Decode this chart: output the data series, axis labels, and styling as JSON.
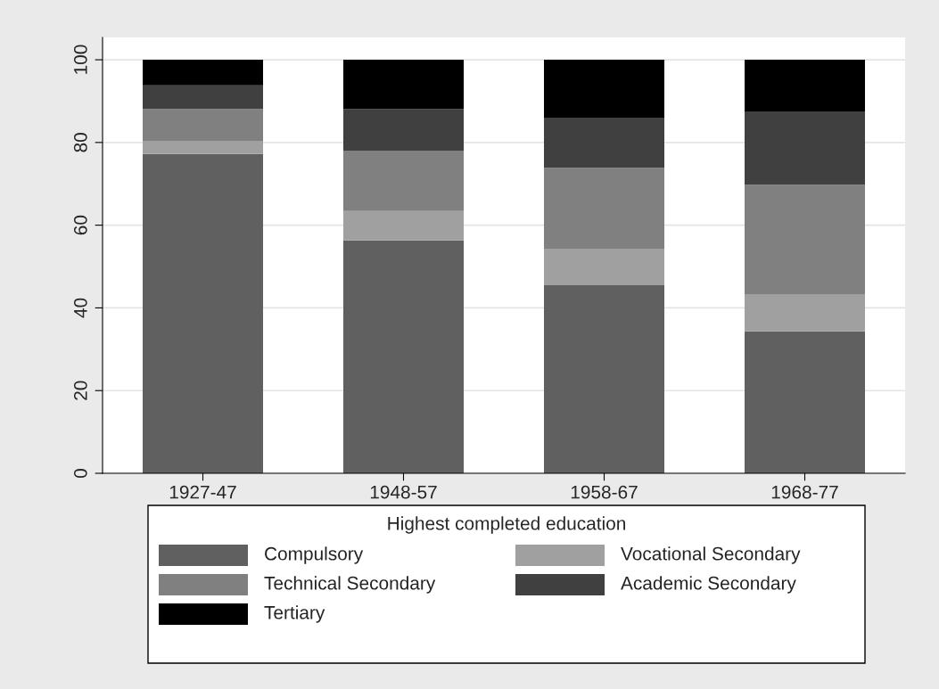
{
  "chart_data": {
    "type": "bar",
    "stacked": true,
    "categories": [
      "1927-47",
      "1948-57",
      "1958-67",
      "1968-77"
    ],
    "series": [
      {
        "name": "Compulsory",
        "color": "#606060",
        "values": [
          77.2,
          56.3,
          45.5,
          34.3
        ]
      },
      {
        "name": "Vocational Secondary",
        "color": "#a0a0a0",
        "values": [
          3.2,
          7.1,
          8.8,
          9.0
        ]
      },
      {
        "name": "Technical Secondary",
        "color": "#808080",
        "values": [
          7.7,
          14.6,
          19.6,
          26.5
        ]
      },
      {
        "name": "Academic Secondary",
        "color": "#404040",
        "values": [
          5.7,
          10.1,
          12.1,
          17.7
        ]
      },
      {
        "name": "Tertiary",
        "color": "#000000",
        "values": [
          6.2,
          11.9,
          14.0,
          12.5
        ]
      }
    ],
    "legend_title": "Highest completed education",
    "legend": "bottom",
    "grid": "y",
    "ylim": [
      0,
      105.4
    ],
    "yticks": [
      0,
      20,
      40,
      60,
      80,
      100
    ]
  }
}
